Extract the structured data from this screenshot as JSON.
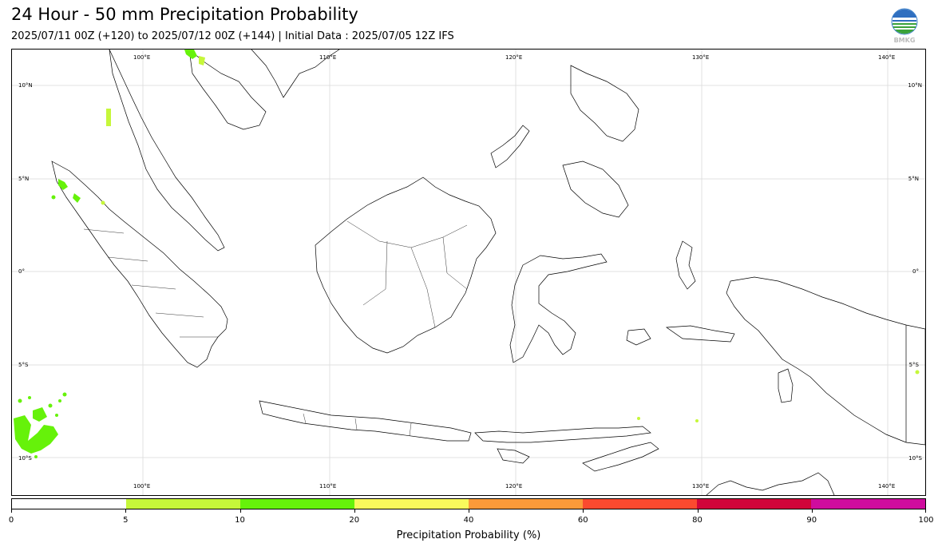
{
  "header": {
    "title": "24 Hour - 50 mm Precipitation Probability",
    "subtitle": "2025/07/11 00Z (+120) to 2025/07/12 00Z (+144) | Initial Data : 2025/07/05 12Z IFS",
    "logo_text": "BMKG"
  },
  "map": {
    "lon_labels_top": [
      "100°E",
      "110°E",
      "120°E",
      "130°E",
      "140°E"
    ],
    "lon_labels_bottom": [
      "100°E",
      "110°E",
      "120°E",
      "130°E",
      "140°E"
    ],
    "lat_labels_left": [
      "10°N",
      "5°N",
      "0°",
      "5°S",
      "10°S"
    ],
    "lat_labels_right": [
      "10°N",
      "5°N",
      "0°",
      "5°S",
      "10°S"
    ],
    "lon_values": [
      100,
      110,
      120,
      130,
      140
    ],
    "lat_values": [
      10,
      5,
      0,
      -5,
      -10
    ],
    "extent": {
      "lon": [
        93,
        142
      ],
      "lat": [
        -12,
        12
      ]
    },
    "gridlines": true,
    "colors": {
      "coast": "#000000",
      "grid": "#dddddd"
    }
  },
  "colorbar": {
    "title": "Precipitation Probability (%)",
    "tick_labels": [
      "0",
      "5",
      "10",
      "20",
      "40",
      "60",
      "80",
      "90",
      "100"
    ],
    "colors": [
      "#ffffff",
      "#c6f73a",
      "#66f20a",
      "#f9f95c",
      "#fb9a39",
      "#fb4a2f",
      "#d1053a",
      "#cf0c9e"
    ]
  }
}
